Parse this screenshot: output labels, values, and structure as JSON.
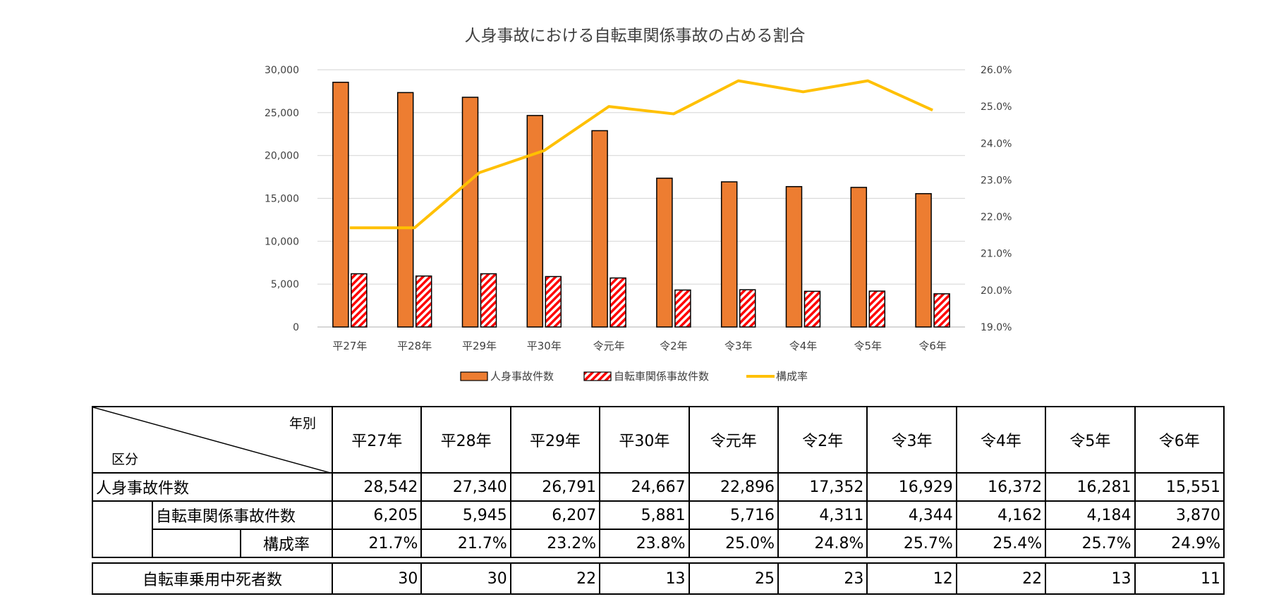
{
  "chart_data": {
    "type": "bar",
    "title": "人身事故における自転車関係事故の占める割合",
    "categories": [
      "平27年",
      "平28年",
      "平29年",
      "平30年",
      "令元年",
      "令2年",
      "令3年",
      "令4年",
      "令5年",
      "令6年"
    ],
    "series": [
      {
        "name": "人身事故件数",
        "type": "bar",
        "axis": "left",
        "color": "#ED7D31",
        "values": [
          28542,
          27340,
          26791,
          24667,
          22896,
          17352,
          16929,
          16372,
          16281,
          15551
        ]
      },
      {
        "name": "自転車関係事故件数",
        "type": "bar",
        "axis": "left",
        "pattern": "red-diagonal-hatch",
        "color": "#FF0000",
        "values": [
          6205,
          5945,
          6207,
          5881,
          5716,
          4311,
          4344,
          4162,
          4184,
          3870
        ]
      },
      {
        "name": "構成率",
        "type": "line",
        "axis": "right",
        "color": "#FFC000",
        "values": [
          21.7,
          21.7,
          23.2,
          23.8,
          25.0,
          24.8,
          25.7,
          25.4,
          25.7,
          24.9
        ]
      }
    ],
    "left_axis": {
      "ylim": [
        0,
        30000
      ],
      "ticks": [
        "0",
        "5,000",
        "10,000",
        "15,000",
        "20,000",
        "25,000",
        "30,000"
      ]
    },
    "right_axis": {
      "ylim": [
        19.0,
        26.0
      ],
      "ticks": [
        "19.0%",
        "20.0%",
        "21.0%",
        "22.0%",
        "23.0%",
        "24.0%",
        "25.0%",
        "26.0%"
      ]
    },
    "grid": true,
    "legend_position": "bottom"
  },
  "table": {
    "header_year": "年別",
    "header_category": "区分",
    "years": [
      "平27年",
      "平28年",
      "平29年",
      "平30年",
      "令元年",
      "令2年",
      "令3年",
      "令4年",
      "令5年",
      "令6年"
    ],
    "rows": [
      {
        "label": "人身事故件数",
        "values": [
          "28,542",
          "27,340",
          "26,791",
          "24,667",
          "22,896",
          "17,352",
          "16,929",
          "16,372",
          "16,281",
          "15,551"
        ]
      },
      {
        "label": "自転車関係事故件数",
        "values": [
          "6,205",
          "5,945",
          "6,207",
          "5,881",
          "5,716",
          "4,311",
          "4,344",
          "4,162",
          "4,184",
          "3,870"
        ]
      },
      {
        "label": "構成率",
        "values": [
          "21.7%",
          "21.7%",
          "23.2%",
          "23.8%",
          "25.0%",
          "24.8%",
          "25.7%",
          "25.4%",
          "25.7%",
          "24.9%"
        ]
      }
    ],
    "fatal": {
      "label": "自転車乗用中死者数",
      "values": [
        "30",
        "30",
        "22",
        "13",
        "25",
        "23",
        "12",
        "22",
        "13",
        "11"
      ]
    }
  }
}
